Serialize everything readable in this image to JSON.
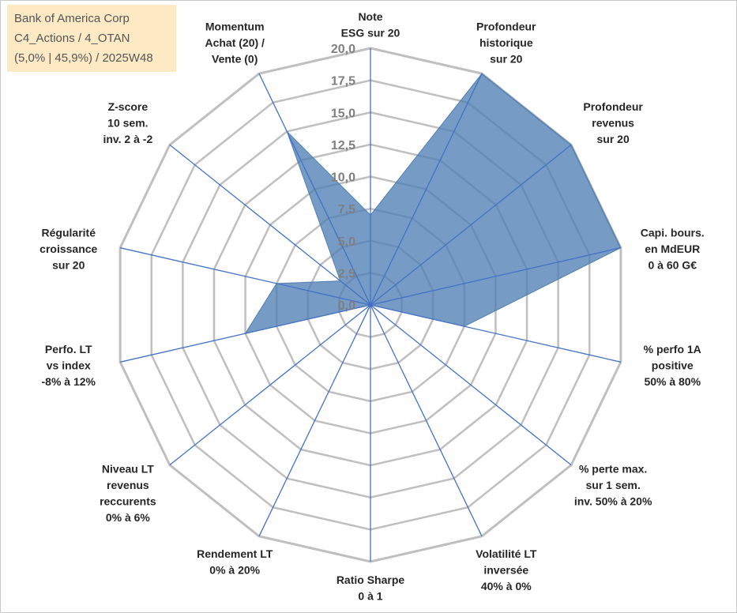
{
  "info_box": {
    "line1": "Bank of America Corp",
    "line2": "C4_Actions / 4_OTAN",
    "line3": "(5,0% | 45,9%) / 2025W48"
  },
  "colors": {
    "fill": "#4f7fb3",
    "axis": "#4472c4",
    "grid": "#bfbfbf",
    "info_bg": "#fde9c4"
  },
  "chart_data": {
    "type": "radar",
    "title": "",
    "rmin": 0,
    "rmax": 20,
    "ticks": [
      "0,0",
      "2,5",
      "5,0",
      "7,5",
      "10,0",
      "12,5",
      "15,0",
      "17,5",
      "20,0"
    ],
    "axes": [
      {
        "label": [
          "Note",
          "ESG sur 20"
        ],
        "value": 7
      },
      {
        "label": [
          "Profondeur",
          "historique",
          "sur 20"
        ],
        "value": 20
      },
      {
        "label": [
          "Profondeur",
          "revenus",
          "sur 20"
        ],
        "value": 20
      },
      {
        "label": [
          "Capi. bours.",
          "en MdEUR",
          "0 à 60 G€"
        ],
        "value": 20
      },
      {
        "label": [
          "% perfo 1A",
          "positive",
          "50% à 80%"
        ],
        "value": 7.5
      },
      {
        "label": [
          "% perte max.",
          "sur 1 sem.",
          "inv. 50% à 20%"
        ],
        "value": 0
      },
      {
        "label": [
          "Volatilité LT",
          "inversée",
          "40% à 0%"
        ],
        "value": 0
      },
      {
        "label": [
          "Ratio Sharpe",
          "0 à 1"
        ],
        "value": 0
      },
      {
        "label": [
          "Rendement LT",
          "0% à 20%"
        ],
        "value": 3
      },
      {
        "label": [
          "Niveau LT",
          "revenus",
          "reccurents",
          "0% à 6%"
        ],
        "value": 0
      },
      {
        "label": [
          "Perfo. LT",
          "vs index",
          "-8% à 12%"
        ],
        "value": 10
      },
      {
        "label": [
          "Régularité",
          "croissance",
          "sur 20"
        ],
        "value": 7.5
      },
      {
        "label": [
          "Z-score",
          "10 sem.",
          "inv. 2 à -2"
        ],
        "value": 3
      },
      {
        "label": [
          "Momentum",
          "Achat (20) /",
          "Vente (0)"
        ],
        "value": 15
      }
    ]
  }
}
